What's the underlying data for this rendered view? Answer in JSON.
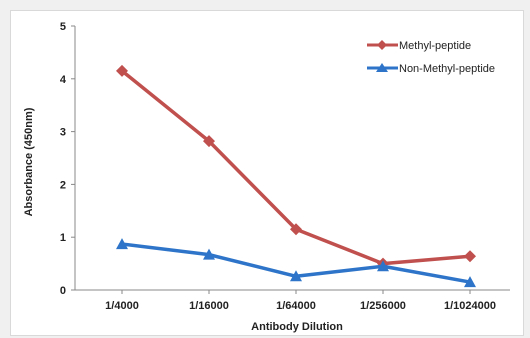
{
  "chart_data": {
    "type": "line",
    "categories": [
      "1/4000",
      "1/16000",
      "1/64000",
      "1/256000",
      "1/1024000"
    ],
    "series": [
      {
        "name": "Methyl-peptide",
        "values": [
          4.15,
          2.82,
          1.15,
          0.5,
          0.64
        ],
        "color": "#c0504d",
        "marker": "diamond"
      },
      {
        "name": "Non-Methyl-peptide",
        "values": [
          0.87,
          0.67,
          0.26,
          0.45,
          0.15
        ],
        "color": "#2e75c9",
        "marker": "triangle"
      }
    ],
    "xlabel": "Antibody Dilution",
    "ylabel": "Absorbance (450nm)",
    "ylim": [
      0,
      5
    ],
    "yticks": [
      "0",
      "1",
      "2",
      "3",
      "4",
      "5"
    ],
    "grid": false,
    "legend_position": "top-right"
  }
}
